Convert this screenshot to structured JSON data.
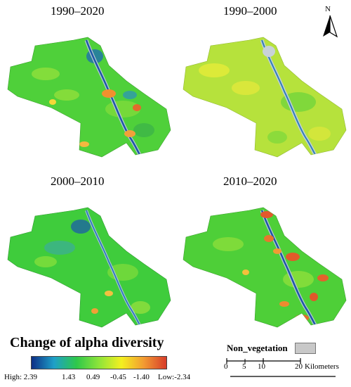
{
  "panels": [
    {
      "title": "1990–2020",
      "dominant": "#4fd03a"
    },
    {
      "title": "1990–2000",
      "dominant": "#b6e23c"
    },
    {
      "title": "2000–2010",
      "dominant": "#3fcc3c"
    },
    {
      "title": "2010–2020",
      "dominant": "#4ecf38"
    }
  ],
  "north_label": "N",
  "legend": {
    "title": "Change of alpha diversity",
    "ticks": [
      "High: 2.39",
      "1.43",
      "0.49",
      "-0.45",
      "-1.40",
      "Low:-2.34"
    ],
    "colors": [
      "#0d2f86",
      "#1ea0c8",
      "#2ec84a",
      "#8ee43a",
      "#f4f020",
      "#f29a32",
      "#d73c2a"
    ]
  },
  "nonveg": {
    "label": "Non_vegetation",
    "color": "#c8c8c8"
  },
  "scale": {
    "ticks": [
      "0",
      "5",
      "10",
      "20"
    ],
    "unit": "Kilometers"
  }
}
